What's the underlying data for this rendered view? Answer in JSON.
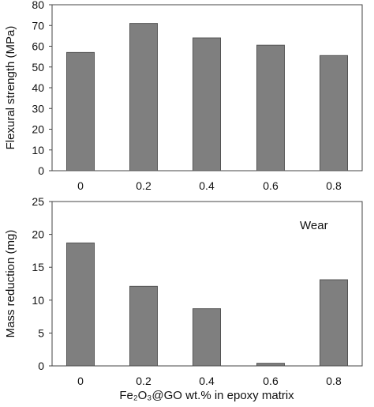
{
  "chart_data": [
    {
      "type": "bar",
      "categories": [
        "0",
        "0.2",
        "0.4",
        "0.6",
        "0.8"
      ],
      "values": [
        57,
        71,
        64,
        60.5,
        55.5
      ],
      "ylabel": "Flexural strength (MPa)",
      "xlabel": "",
      "ylim": [
        0,
        80
      ],
      "yticks": [
        "0",
        "10",
        "20",
        "30",
        "40",
        "50",
        "60",
        "70",
        "80"
      ],
      "grid": false,
      "bar_color": "#7f7f7f",
      "annotation": ""
    },
    {
      "type": "bar",
      "categories": [
        "0",
        "0.2",
        "0.4",
        "0.6",
        "0.8"
      ],
      "values": [
        18.7,
        12.1,
        8.7,
        0.4,
        13.1
      ],
      "ylabel": "Mass reduction (mg)",
      "xlabel": "Fe₂O₃@GO wt.% in epoxy matrix",
      "ylim": [
        0,
        25
      ],
      "yticks": [
        "0",
        "5",
        "10",
        "15",
        "20",
        "25"
      ],
      "grid": false,
      "bar_color": "#7f7f7f",
      "annotation": "Wear"
    }
  ]
}
